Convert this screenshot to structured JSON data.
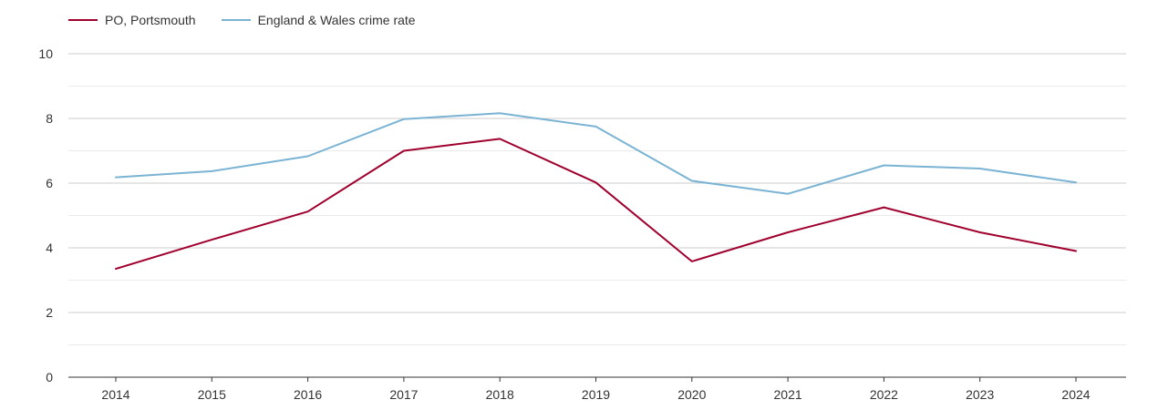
{
  "chart_data": {
    "type": "line",
    "title": "",
    "xlabel": "",
    "ylabel": "",
    "categories": [
      "2014",
      "2015",
      "2016",
      "2017",
      "2018",
      "2019",
      "2020",
      "2021",
      "2022",
      "2023",
      "2024"
    ],
    "ylim": [
      0,
      10
    ],
    "yticks": [
      0,
      2,
      4,
      6,
      8,
      10
    ],
    "grid": true,
    "legend_position": "top-left",
    "series": [
      {
        "name": "PO, Portsmouth",
        "color": "#a0002e",
        "values": [
          3.35,
          4.25,
          5.12,
          7.0,
          7.37,
          6.02,
          3.58,
          4.48,
          5.25,
          4.48,
          3.9
        ]
      },
      {
        "name": "England & Wales crime rate",
        "color": "#7ab3d3",
        "values": [
          6.18,
          6.37,
          6.83,
          7.98,
          8.16,
          7.75,
          6.07,
          5.67,
          6.55,
          6.45,
          6.02
        ]
      }
    ]
  }
}
